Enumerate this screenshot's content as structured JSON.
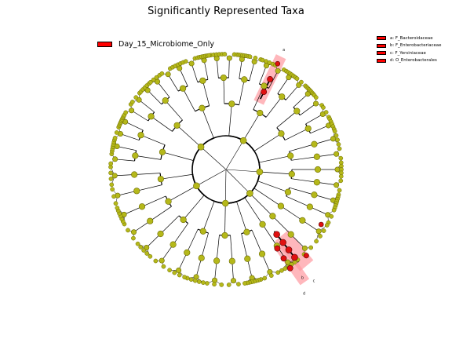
{
  "title": "Significantly Represented Taxa",
  "legend": {
    "class_label": "Day_15_Microbiome_Only",
    "class_color": "#ff0000",
    "taxa": [
      {
        "key": "a",
        "label": "a: F_Bacteroidaceae"
      },
      {
        "key": "b",
        "label": "b: F_Enterobacteriaceae"
      },
      {
        "key": "c",
        "label": "c: F_Yersiniaceae"
      },
      {
        "key": "d",
        "label": "d: O_Enterobacterales"
      }
    ]
  },
  "clade_labels": [
    "a",
    "b",
    "c",
    "d"
  ],
  "colors": {
    "node_fill": "#b5b81a",
    "node_stroke": "#6b6b00",
    "highlight_node": "#e01010",
    "highlight_shade": "#ff9aa0",
    "branch": "#000000"
  }
}
